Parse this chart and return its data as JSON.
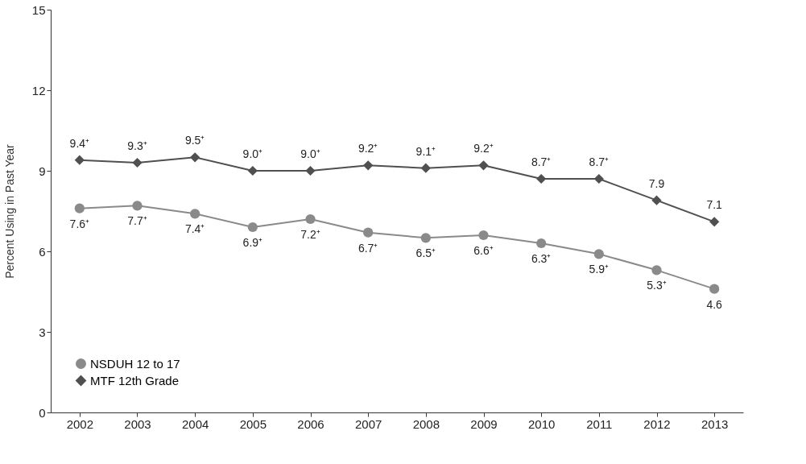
{
  "chart_data": {
    "type": "line",
    "ylabel": "Percent Using in Past Year",
    "categories": [
      "2002",
      "2003",
      "2004",
      "2005",
      "2006",
      "2007",
      "2008",
      "2009",
      "2010",
      "2011",
      "2012",
      "2013"
    ],
    "series": [
      {
        "name": "NSDUH 12 to 17",
        "color": "#8a8a8a",
        "marker": "circle",
        "values": [
          7.6,
          7.7,
          7.4,
          6.9,
          7.2,
          6.7,
          6.5,
          6.6,
          6.3,
          5.9,
          5.3,
          4.6
        ],
        "value_labels": [
          "7.6⁺",
          "7.7⁺",
          "7.4⁺",
          "6.9⁺",
          "7.2⁺",
          "6.7⁺",
          "6.5⁺",
          "6.6⁺",
          "6.3⁺",
          "5.9⁺",
          "5.3⁺",
          "4.6"
        ]
      },
      {
        "name": "MTF 12th Grade",
        "color": "#505050",
        "marker": "diamond",
        "values": [
          9.4,
          9.3,
          9.5,
          9.0,
          9.0,
          9.2,
          9.1,
          9.2,
          8.7,
          8.7,
          7.9,
          7.1
        ],
        "value_labels": [
          "9.4⁺",
          "9.3⁺",
          "9.5⁺",
          "9.0⁺",
          "9.0⁺",
          "9.2⁺",
          "9.1⁺",
          "9.2⁺",
          "8.7⁺",
          "8.7⁺",
          "7.9",
          "7.1"
        ]
      }
    ],
    "ylim": [
      0,
      15
    ],
    "yticks": [
      0,
      3,
      6,
      9,
      12,
      15
    ],
    "grid": false,
    "legend": "bottom left"
  }
}
